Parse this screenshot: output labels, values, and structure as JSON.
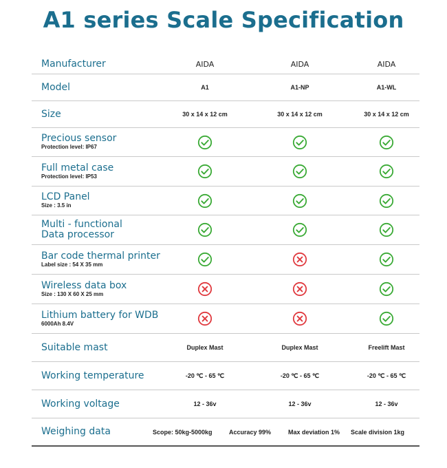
{
  "title": "A1 series Scale Specification",
  "colors": {
    "accent": "#1b6e8e",
    "check": "#3aaa35",
    "cross": "#e0393e"
  },
  "rows": [
    {
      "label": "Manufacturer",
      "sub": "",
      "values": [
        "AIDA",
        "AIDA",
        "AIDA"
      ]
    },
    {
      "label": "Model",
      "sub": "",
      "values": [
        "A1",
        "A1-NP",
        "A1-WL"
      ]
    },
    {
      "label": "Size",
      "sub": "",
      "values": [
        "30 x 14 x 12 cm",
        "30 x 14 x 12 cm",
        "30 x 14 x 12 cm"
      ]
    },
    {
      "label": "Precious sensor",
      "sub": "Protection level: IP67",
      "icons": [
        "check",
        "check",
        "check"
      ]
    },
    {
      "label": "Full metal case",
      "sub": "Protection level: IP53",
      "icons": [
        "check",
        "check",
        "check"
      ]
    },
    {
      "label": "LCD Panel",
      "sub": "Size : 3.5 in",
      "icons": [
        "check",
        "check",
        "check"
      ]
    },
    {
      "label": "Multi - functional",
      "label2": "Data processor",
      "sub": "",
      "icons": [
        "check",
        "check",
        "check"
      ]
    },
    {
      "label": "Bar code thermal printer",
      "sub": "Label size : 54 X 35 mm",
      "icons": [
        "check",
        "cross",
        "check"
      ]
    },
    {
      "label": "Wireless data box",
      "sub": "Size : 130 X 60 X 25 mm",
      "icons": [
        "cross",
        "cross",
        "check"
      ]
    },
    {
      "label": "Lithium battery for WDB",
      "sub": "6000Ah 8.4V",
      "icons": [
        "cross",
        "cross",
        "check"
      ]
    },
    {
      "label": "Suitable mast",
      "sub": "",
      "values": [
        "Duplex Mast",
        "Duplex Mast",
        "Freelift Mast"
      ]
    },
    {
      "label": "Working temperature",
      "sub": "",
      "values": [
        "-20 ℃ - 65 ℃",
        "-20 ℃ - 65 ℃",
        "-20 ℃ - 65 ℃"
      ]
    },
    {
      "label": "Working voltage",
      "sub": "",
      "values": [
        "12 - 36v",
        "12 - 36v",
        "12 - 36v"
      ]
    }
  ],
  "weighing": {
    "label": "Weighing data",
    "items": [
      "Scope: 50kg-5000kg",
      "Accuracy 99%",
      "Max deviation 1%",
      "Scale division 1kg"
    ]
  }
}
